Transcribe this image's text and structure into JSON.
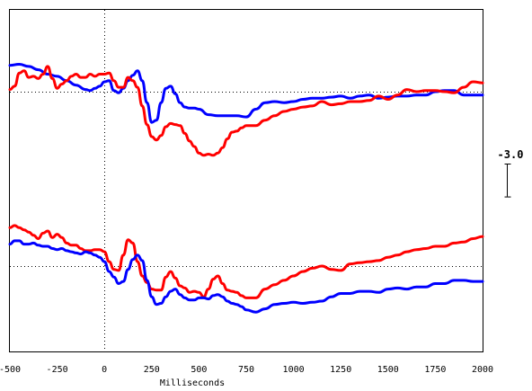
{
  "chart_data": {
    "type": "line",
    "title": "",
    "xlabel": "Milliseconds",
    "ylabel": "",
    "xlim": [
      -500,
      2000
    ],
    "xticks": [
      -500,
      -250,
      0,
      250,
      500,
      750,
      1000,
      1250,
      1500,
      1750,
      2000
    ],
    "xtick_labels": [
      "-500",
      "-250",
      "0",
      "250",
      "500",
      "750",
      "1000",
      "1250",
      "1500",
      "1750",
      "2000"
    ],
    "scale_bar_label": "-3.0",
    "scale_bar_value": 3.0,
    "panels": [
      {
        "baseline": 0,
        "series": [
          {
            "color": "#0000ff",
            "x": [
              -500,
              -450,
              -400,
              -350,
              -300,
              -250,
              -200,
              -150,
              -100,
              -75,
              -50,
              -25,
              0,
              25,
              50,
              75,
              100,
              125,
              150,
              175,
              200,
              225,
              250,
              275,
              300,
              325,
              350,
              375,
              400,
              425,
              450,
              475,
              500,
              550,
              600,
              650,
              700,
              750,
              800,
              850,
              900,
              950,
              1000,
              1050,
              1100,
              1150,
              1200,
              1250,
              1300,
              1350,
              1400,
              1450,
              1500,
              1550,
              1600,
              1650,
              1700,
              1750,
              1800,
              1850,
              1900,
              1950,
              2000
            ],
            "y": [
              2.4,
              2.5,
              2.3,
              2.0,
              1.6,
              1.4,
              1.0,
              0.6,
              0.2,
              0.1,
              0.3,
              0.5,
              0.9,
              1.0,
              0.1,
              -0.1,
              0.3,
              1.0,
              1.5,
              1.9,
              1.0,
              -1.0,
              -2.8,
              -2.6,
              -1.0,
              0.3,
              0.5,
              -0.2,
              -1.0,
              -1.4,
              -1.5,
              -1.5,
              -1.6,
              -2.1,
              -2.2,
              -2.2,
              -2.2,
              -2.3,
              -1.6,
              -1.0,
              -0.9,
              -1.0,
              -0.9,
              -0.7,
              -0.6,
              -0.6,
              -0.5,
              -0.4,
              -0.6,
              -0.4,
              -0.3,
              -0.6,
              -0.5,
              -0.4,
              -0.4,
              -0.3,
              -0.3,
              0.0,
              0.1,
              0.1,
              -0.3,
              -0.3,
              -0.3
            ]
          },
          {
            "color": "#ff0000",
            "x": [
              -500,
              -475,
              -450,
              -425,
              -400,
              -375,
              -350,
              -325,
              -300,
              -275,
              -250,
              -225,
              -200,
              -175,
              -150,
              -125,
              -100,
              -75,
              -50,
              -25,
              0,
              25,
              50,
              75,
              100,
              125,
              150,
              175,
              200,
              225,
              250,
              275,
              300,
              325,
              350,
              375,
              400,
              425,
              450,
              475,
              500,
              525,
              550,
              575,
              600,
              625,
              650,
              675,
              700,
              725,
              750,
              800,
              850,
              900,
              950,
              1000,
              1050,
              1100,
              1150,
              1200,
              1250,
              1300,
              1350,
              1400,
              1450,
              1500,
              1550,
              1600,
              1650,
              1700,
              1750,
              1800,
              1850,
              1900,
              1950,
              2000
            ],
            "y": [
              0.2,
              0.5,
              1.7,
              1.9,
              1.3,
              1.4,
              1.2,
              1.6,
              2.3,
              1.2,
              0.3,
              0.7,
              1.0,
              1.4,
              1.6,
              1.3,
              1.3,
              1.6,
              1.4,
              1.6,
              1.6,
              1.7,
              1.0,
              0.4,
              0.4,
              1.3,
              1.0,
              0.4,
              -1.3,
              -3.0,
              -4.1,
              -4.4,
              -4.0,
              -3.2,
              -2.9,
              -3.0,
              -3.1,
              -3.8,
              -4.5,
              -5.0,
              -5.6,
              -5.8,
              -5.7,
              -5.8,
              -5.6,
              -5.1,
              -4.3,
              -3.7,
              -3.6,
              -3.3,
              -3.1,
              -3.1,
              -2.6,
              -2.2,
              -1.8,
              -1.6,
              -1.4,
              -1.3,
              -0.9,
              -1.2,
              -1.1,
              -0.9,
              -0.9,
              -0.8,
              -0.4,
              -0.7,
              -0.3,
              0.2,
              0.0,
              0.1,
              0.1,
              0.0,
              -0.1,
              0.4,
              0.9,
              0.8
            ]
          }
        ]
      },
      {
        "baseline": 0,
        "series": [
          {
            "color": "#ff0000",
            "x": [
              -500,
              -475,
              -450,
              -425,
              -400,
              -375,
              -350,
              -325,
              -300,
              -275,
              -250,
              -225,
              -200,
              -175,
              -150,
              -125,
              -100,
              -75,
              -50,
              -25,
              0,
              25,
              50,
              75,
              100,
              125,
              150,
              175,
              200,
              225,
              250,
              275,
              300,
              325,
              350,
              375,
              400,
              425,
              450,
              475,
              500,
              525,
              550,
              575,
              600,
              625,
              650,
              675,
              700,
              725,
              750,
              800,
              850,
              900,
              950,
              1000,
              1050,
              1100,
              1150,
              1200,
              1250,
              1300,
              1350,
              1400,
              1450,
              1500,
              1550,
              1600,
              1650,
              1700,
              1750,
              1800,
              1850,
              1900,
              1950,
              2000
            ],
            "y": [
              3.5,
              3.7,
              3.5,
              3.3,
              3.1,
              2.8,
              2.5,
              3.0,
              3.2,
              2.6,
              2.9,
              2.6,
              2.1,
              1.9,
              1.9,
              1.6,
              1.4,
              1.4,
              1.5,
              1.5,
              1.3,
              0.4,
              -0.3,
              -0.4,
              1.0,
              2.4,
              2.1,
              0.4,
              -0.9,
              -1.5,
              -2.1,
              -2.2,
              -2.2,
              -1.0,
              -0.5,
              -1.1,
              -1.8,
              -2.0,
              -2.4,
              -2.3,
              -2.4,
              -2.8,
              -2.1,
              -1.2,
              -0.9,
              -1.6,
              -2.2,
              -2.3,
              -2.4,
              -2.7,
              -2.9,
              -2.9,
              -2.1,
              -1.7,
              -1.3,
              -0.9,
              -0.5,
              -0.2,
              0.0,
              -0.3,
              -0.4,
              0.2,
              0.3,
              0.4,
              0.5,
              0.8,
              1.0,
              1.3,
              1.5,
              1.6,
              1.8,
              1.8,
              2.1,
              2.2,
              2.5,
              2.7
            ]
          },
          {
            "color": "#0000ff",
            "x": [
              -500,
              -475,
              -450,
              -425,
              -400,
              -375,
              -350,
              -325,
              -300,
              -275,
              -250,
              -225,
              -200,
              -175,
              -150,
              -125,
              -100,
              -75,
              -50,
              -25,
              0,
              25,
              50,
              75,
              100,
              125,
              150,
              175,
              200,
              225,
              250,
              275,
              300,
              325,
              350,
              375,
              400,
              425,
              450,
              475,
              500,
              525,
              550,
              575,
              600,
              625,
              650,
              675,
              700,
              725,
              750,
              800,
              850,
              900,
              950,
              1000,
              1050,
              1100,
              1150,
              1200,
              1250,
              1300,
              1350,
              1400,
              1450,
              1500,
              1550,
              1600,
              1650,
              1700,
              1750,
              1800,
              1850,
              1900,
              1950,
              2000
            ],
            "y": [
              2.0,
              2.3,
              2.3,
              2.0,
              2.0,
              2.1,
              1.9,
              1.8,
              1.8,
              1.6,
              1.5,
              1.6,
              1.4,
              1.3,
              1.2,
              1.1,
              1.3,
              1.2,
              1.0,
              0.8,
              0.4,
              -0.5,
              -1.0,
              -1.6,
              -1.4,
              -0.3,
              0.6,
              1.0,
              0.5,
              -1.3,
              -2.8,
              -3.5,
              -3.4,
              -2.8,
              -2.3,
              -2.1,
              -2.6,
              -2.9,
              -3.1,
              -3.1,
              -2.9,
              -2.9,
              -3.0,
              -2.7,
              -2.6,
              -2.8,
              -3.2,
              -3.4,
              -3.5,
              -3.7,
              -4.0,
              -4.2,
              -3.9,
              -3.5,
              -3.4,
              -3.3,
              -3.4,
              -3.3,
              -3.2,
              -2.8,
              -2.5,
              -2.5,
              -2.3,
              -2.3,
              -2.4,
              -2.1,
              -2.0,
              -2.1,
              -1.9,
              -1.9,
              -1.6,
              -1.6,
              -1.3,
              -1.3,
              -1.4,
              -1.4
            ]
          }
        ]
      }
    ]
  }
}
